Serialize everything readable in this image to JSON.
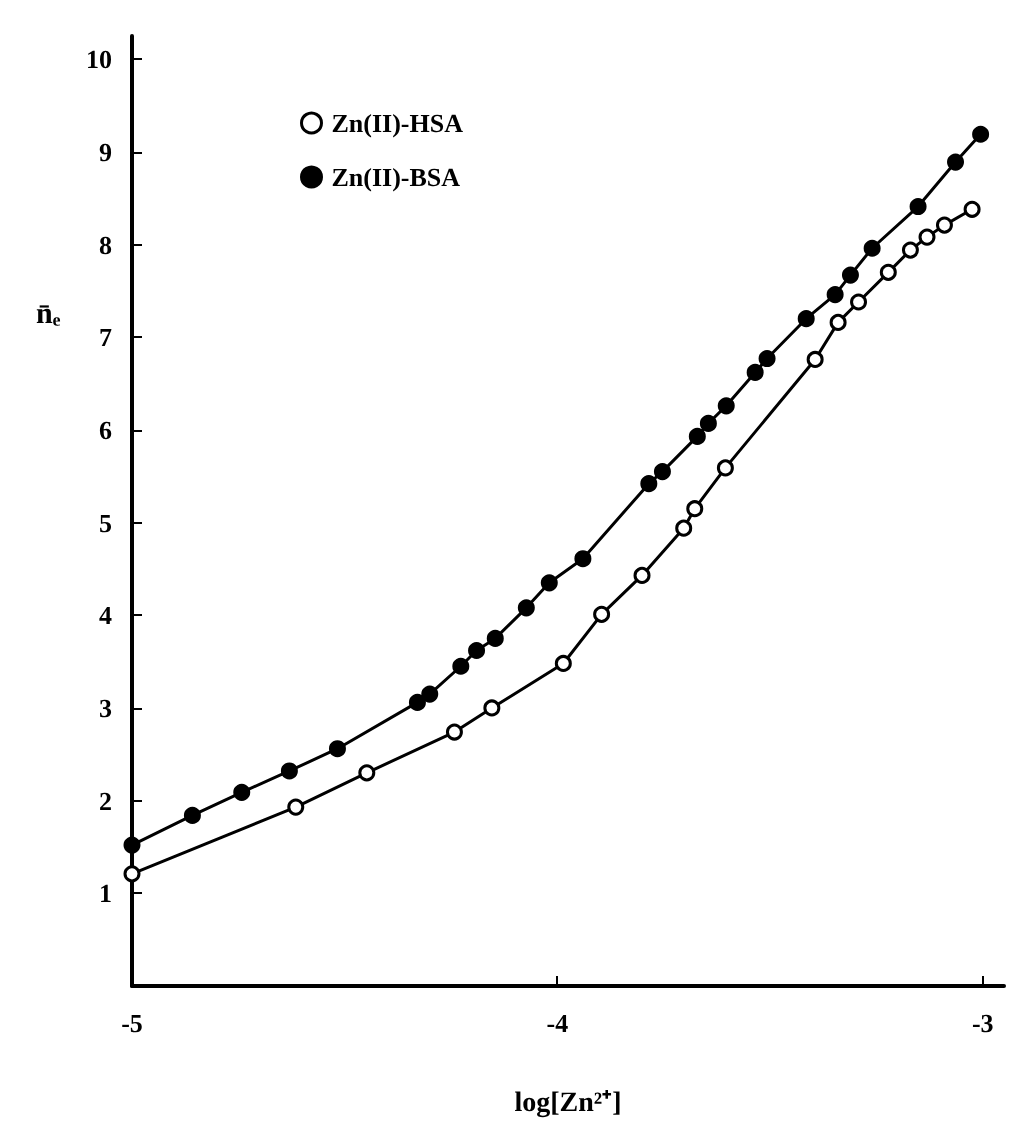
{
  "chart_data": {
    "type": "line",
    "xlabel": "log[Zn²⁺]",
    "ylabel": "n̄ₑ",
    "xlim": [
      -5,
      -2.95
    ],
    "xticks": [
      -5,
      -4,
      -3
    ],
    "ylim": [
      0,
      10.25
    ],
    "yticks": [
      1,
      2,
      3,
      4,
      5,
      6,
      7,
      8,
      9,
      10
    ],
    "grid": false,
    "legend": "top left",
    "marker": "circle",
    "line_style": "solid",
    "series": [
      {
        "name": "Zn(II)-HSA",
        "color": "#000000",
        "x": [
          -5.0,
          -4.615,
          -4.448,
          -4.242,
          -4.154,
          -3.986,
          -3.896,
          -3.801,
          -3.703,
          -3.677,
          -3.605,
          -3.394,
          -3.34,
          -3.292,
          -3.222,
          -3.17,
          -3.131,
          -3.09,
          -3.025
        ],
        "values": [
          1.21,
          1.93,
          2.3,
          2.74,
          3.0,
          3.48,
          4.01,
          4.43,
          4.94,
          5.15,
          5.59,
          6.76,
          7.16,
          7.38,
          7.7,
          7.94,
          8.08,
          8.21,
          8.38
        ]
      },
      {
        "name": "Zn(II)-BSA",
        "color": "#000000",
        "x": [
          -5.0,
          -4.858,
          -4.742,
          -4.63,
          -4.517,
          -4.329,
          -4.3,
          -4.227,
          -4.19,
          -4.146,
          -4.073,
          -4.019,
          -3.94,
          -3.785,
          -3.753,
          -3.671,
          -3.645,
          -3.603,
          -3.535,
          -3.507,
          -3.415,
          -3.347,
          -3.311,
          -3.26,
          -3.152,
          -3.064,
          -3.005
        ],
        "values": [
          1.52,
          1.84,
          2.09,
          2.32,
          2.56,
          3.06,
          3.15,
          3.45,
          3.62,
          3.75,
          4.08,
          4.35,
          4.61,
          5.42,
          5.55,
          5.93,
          6.07,
          6.26,
          6.62,
          6.77,
          7.2,
          7.46,
          7.67,
          7.96,
          8.41,
          8.89,
          9.19
        ]
      }
    ]
  }
}
